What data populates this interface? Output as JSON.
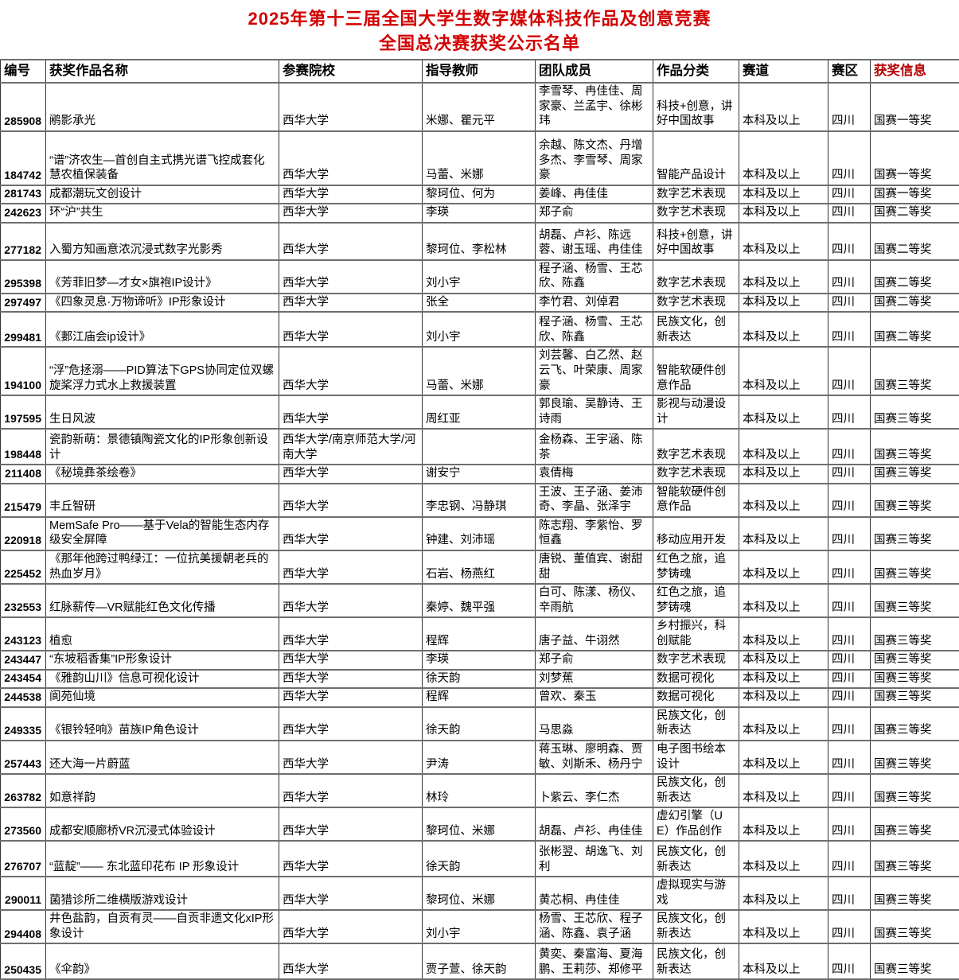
{
  "title": {
    "line1": "2025年第十三届全国大学生数字媒体科技作品及创意竞赛",
    "line2": "全国总决赛获奖公示名单"
  },
  "colors": {
    "title_red": "#d30000",
    "award_header_red": "#b40000"
  },
  "table": {
    "headers": [
      "编号",
      "获奖作品名称",
      "参赛院校",
      "指导教师",
      "团队成员",
      "作品分类",
      "赛道",
      "赛区",
      "获奖信息"
    ],
    "rows": [
      {
        "id": "285908",
        "name": "鹇影承光",
        "school": "西华大学",
        "teacher": "米娜、瞿元平",
        "team": "李雪琴、冉佳佳、周家豪、兰孟宇、徐彬玮",
        "category": "科技+创意，讲好中国故事",
        "track": "本科及以上",
        "region": "四川",
        "award": "国赛一等奖"
      },
      {
        "id": "184742",
        "name": "“谱”济农生—首创自主式携光谱飞控成套化慧农植保装备",
        "school": "西华大学",
        "teacher": "马蕾、米娜",
        "team": "余越、陈文杰、丹增多杰、李雪琴、周家豪",
        "category": "智能产品设计",
        "track": "本科及以上",
        "region": "四川",
        "award": "国赛一等奖"
      },
      {
        "id": "281743",
        "name": "成都潮玩文创设计",
        "school": "西华大学",
        "teacher": "黎珂位、何为",
        "team": "姜峰、冉佳佳",
        "category": "数字艺术表现",
        "track": "本科及以上",
        "region": "四川",
        "award": "国赛一等奖"
      },
      {
        "id": "242623",
        "name": "环“沪”共生",
        "school": "西华大学",
        "teacher": "李瑛",
        "team": "郑子俞",
        "category": "数字艺术表现",
        "track": "本科及以上",
        "region": "四川",
        "award": "国赛二等奖"
      },
      {
        "id": "277182",
        "name": "入蜀方知画意浓沉浸式数字光影秀",
        "school": "西华大学",
        "teacher": "黎珂位、李松林",
        "team": "胡磊、卢衫、陈远蓉、谢玉瑶、冉佳佳",
        "category": "科技+创意，讲好中国故事",
        "track": "本科及以上",
        "region": "四川",
        "award": "国赛二等奖"
      },
      {
        "id": "295398",
        "name": "《芳菲旧梦—才女×旗袍IP设计》",
        "school": "西华大学",
        "teacher": "刘小宇",
        "team": "程子涵、杨雪、王芯欣、陈鑫",
        "category": "数字艺术表现",
        "track": "本科及以上",
        "region": "四川",
        "award": "国赛二等奖"
      },
      {
        "id": "297497",
        "name": "《四象灵息·万物谛听》IP形象设计",
        "school": "西华大学",
        "teacher": "张全",
        "team": "李竹君、刘倬君",
        "category": "数字艺术表现",
        "track": "本科及以上",
        "region": "四川",
        "award": "国赛二等奖"
      },
      {
        "id": "299481",
        "name": "《郪江庙会ip设计》",
        "school": "西华大学",
        "teacher": "刘小宇",
        "team": "程子涵、杨雪、王芯欣、陈鑫",
        "category": "民族文化，创新表达",
        "track": "本科及以上",
        "region": "四川",
        "award": "国赛二等奖"
      },
      {
        "id": "194100",
        "name": "“浮”危拯溺——PID算法下GPS协同定位双螺旋桨浮力式水上救援装置",
        "school": "西华大学",
        "teacher": "马蕾、米娜",
        "team": "刘芸馨、白乙然、赵云飞、叶荣康、周家豪",
        "category": "智能软硬件创意作品",
        "track": "本科及以上",
        "region": "四川",
        "award": "国赛三等奖"
      },
      {
        "id": "197595",
        "name": "生日风波",
        "school": "西华大学",
        "teacher": "周红亚",
        "team": "郭良瑜、吴静诗、王诗雨",
        "category": "影视与动漫设计",
        "track": "本科及以上",
        "region": "四川",
        "award": "国赛三等奖"
      },
      {
        "id": "198448",
        "name": "瓷韵新萌：景德镇陶瓷文化的IP形象创新设计",
        "school": "西华大学/南京师范大学/河南大学",
        "teacher": "",
        "team": "金杨森、王宇涵、陈茶",
        "category": "数字艺术表现",
        "track": "本科及以上",
        "region": "四川",
        "award": "国赛三等奖"
      },
      {
        "id": "211408",
        "name": "《秘境彝茶绘卷》",
        "school": "西华大学",
        "teacher": "谢安宁",
        "team": "袁倩梅",
        "category": "数字艺术表现",
        "track": "本科及以上",
        "region": "四川",
        "award": "国赛三等奖"
      },
      {
        "id": "215479",
        "name": "丰丘智研",
        "school": "西华大学",
        "teacher": "李忠钢、冯静琪",
        "team": "王波、王子涵、姜沛奇、李晶、张泽宇",
        "category": "智能软硬件创意作品",
        "track": "本科及以上",
        "region": "四川",
        "award": "国赛三等奖"
      },
      {
        "id": "220918",
        "name": "MemSafe Pro——基于Vela的智能生态内存级安全屏障",
        "school": "西华大学",
        "teacher": "钟建、刘沛瑶",
        "team": "陈志翔、李紫怡、罗恒鑫",
        "category": "移动应用开发",
        "track": "本科及以上",
        "region": "四川",
        "award": "国赛三等奖"
      },
      {
        "id": "225452",
        "name": "《那年他跨过鸭绿江：一位抗美援朝老兵的热血岁月》",
        "school": "西华大学",
        "teacher": "石岩、杨燕红",
        "team": "唐锐、董值宾、谢甜甜",
        "category": "红色之旅，追梦铸魂",
        "track": "本科及以上",
        "region": "四川",
        "award": "国赛三等奖"
      },
      {
        "id": "232553",
        "name": "红脉薪传—VR赋能红色文化传播",
        "school": "西华大学",
        "teacher": "秦婷、魏平强",
        "team": "白可、陈漾、杨仪、辛雨航",
        "category": "红色之旅，追梦铸魂",
        "track": "本科及以上",
        "region": "四川",
        "award": "国赛三等奖"
      },
      {
        "id": "243123",
        "name": "植愈",
        "school": "西华大学",
        "teacher": "程辉",
        "team": "唐子益、牛诩然",
        "category": "乡村振兴，科创赋能",
        "track": "本科及以上",
        "region": "四川",
        "award": "国赛三等奖"
      },
      {
        "id": "243447",
        "name": "“东坡稻香集”IP形象设计",
        "school": "西华大学",
        "teacher": "李瑛",
        "team": "郑子俞",
        "category": "数字艺术表现",
        "track": "本科及以上",
        "region": "四川",
        "award": "国赛三等奖"
      },
      {
        "id": "243454",
        "name": "《雅韵山川》信息可视化设计",
        "school": "西华大学",
        "teacher": "徐天韵",
        "team": "刘梦蕉",
        "category": "数据可视化",
        "track": "本科及以上",
        "region": "四川",
        "award": "国赛三等奖"
      },
      {
        "id": "244538",
        "name": "阆苑仙境",
        "school": "西华大学",
        "teacher": "程辉",
        "team": "曾欢、秦玉",
        "category": "数据可视化",
        "track": "本科及以上",
        "region": "四川",
        "award": "国赛三等奖"
      },
      {
        "id": "249335",
        "name": "《银铃轻响》苗族IP角色设计",
        "school": "西华大学",
        "teacher": "徐天韵",
        "team": "马思淼",
        "category": "民族文化，创新表达",
        "track": "本科及以上",
        "region": "四川",
        "award": "国赛三等奖"
      },
      {
        "id": "257443",
        "name": "还大海一片蔚蓝",
        "school": "西华大学",
        "teacher": "尹涛",
        "team": "蒋玉琳、廖明森、贾敏、刘斯禾、杨丹宁",
        "category": "电子图书绘本设计",
        "track": "本科及以上",
        "region": "四川",
        "award": "国赛三等奖"
      },
      {
        "id": "263782",
        "name": "如意祥韵",
        "school": "西华大学",
        "teacher": "林玲",
        "team": "卜紫云、李仁杰",
        "category": "民族文化，创新表达",
        "track": "本科及以上",
        "region": "四川",
        "award": "国赛三等奖"
      },
      {
        "id": "273560",
        "name": "成都安顺廊桥VR沉浸式体验设计",
        "school": "西华大学",
        "teacher": "黎珂位、米娜",
        "team": "胡磊、卢衫、冉佳佳",
        "category": "虚幻引擎（UE）作品创作",
        "track": "本科及以上",
        "region": "四川",
        "award": "国赛三等奖"
      },
      {
        "id": "276707",
        "name": "“蓝靛”—— 东北蓝印花布 IP 形象设计",
        "school": "西华大学",
        "teacher": "徐天韵",
        "team": "张彬翌、胡逸飞、刘利",
        "category": "民族文化，创新表达",
        "track": "本科及以上",
        "region": "四川",
        "award": "国赛三等奖"
      },
      {
        "id": "290011",
        "name": "菌猎诊所二维横版游戏设计",
        "school": "西华大学",
        "teacher": "黎珂位、米娜",
        "team": "黄芯桐、冉佳佳",
        "category": "虚拟现实与游戏",
        "track": "本科及以上",
        "region": "四川",
        "award": "国赛三等奖"
      },
      {
        "id": "294408",
        "name": "井色盐韵，自贡有灵——自贡非遗文化xIP形象设计",
        "school": "西华大学",
        "teacher": "刘小宇",
        "team": "杨雪、王芯欣、程子涵、陈鑫、袁子涵",
        "category": "民族文化，创新表达",
        "track": "本科及以上",
        "region": "四川",
        "award": "国赛三等奖"
      },
      {
        "id": "250435",
        "name": "《伞韵》",
        "school": "西华大学",
        "teacher": "贾子萱、徐天韵",
        "team": "黄奕、秦富海、夏海鹏、王莉莎、郑修平",
        "category": "民族文化，创新表达",
        "track": "本科及以上",
        "region": "四川",
        "award": "国赛三等奖"
      }
    ]
  }
}
